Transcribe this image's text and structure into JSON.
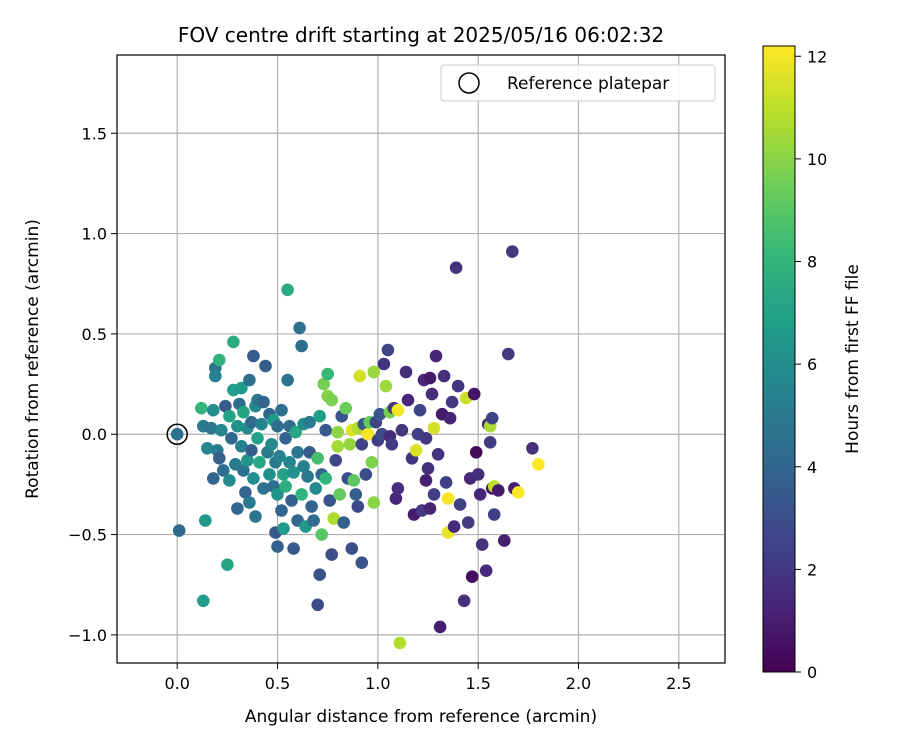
{
  "chart_data": {
    "type": "scatter",
    "title": "FOV centre drift starting at 2025/05/16 06:02:32",
    "xlabel": "Angular distance from reference (arcmin)",
    "ylabel": "Rotation from reference (arcmin)",
    "xlim": [
      -0.3,
      2.73
    ],
    "ylim": [
      -1.14,
      1.89
    ],
    "xticks": [
      0.0,
      0.5,
      1.0,
      1.5,
      2.0,
      2.5
    ],
    "xtick_labels": [
      "0.0",
      "0.5",
      "1.0",
      "1.5",
      "2.0",
      "2.5"
    ],
    "yticks": [
      -1.0,
      -0.5,
      0.0,
      0.5,
      1.0,
      1.5
    ],
    "ytick_labels": [
      "−1.0",
      "−0.5",
      "0.0",
      "0.5",
      "1.0",
      "1.5"
    ],
    "grid": true,
    "legend": {
      "placement": "top-right",
      "entries": [
        "Reference platepar"
      ]
    },
    "reference_point": {
      "x": 0.0,
      "y": 0.0
    },
    "colorbar": {
      "label": "Hours from first FF file",
      "min": 0,
      "max": 12.2,
      "ticks": [
        0,
        2,
        4,
        6,
        8,
        10,
        12
      ],
      "tick_labels": [
        "0",
        "2",
        "4",
        "6",
        "8",
        "10",
        "12"
      ],
      "colormap": "viridis",
      "colormap_stops": [
        "#440154",
        "#482878",
        "#3e4989",
        "#31688e",
        "#26828e",
        "#1f9e89",
        "#35b779",
        "#6ece58",
        "#b5de2b",
        "#fde725"
      ]
    },
    "points": [
      {
        "x": 0.0,
        "y": 0.0,
        "h": 4.5
      },
      {
        "x": 0.01,
        "y": -0.48,
        "h": 4.2
      },
      {
        "x": 0.12,
        "y": 0.13,
        "h": 8.0
      },
      {
        "x": 0.13,
        "y": 0.04,
        "h": 5.0
      },
      {
        "x": 0.14,
        "y": -0.43,
        "h": 6.5
      },
      {
        "x": 0.13,
        "y": -0.83,
        "h": 6.8
      },
      {
        "x": 0.15,
        "y": -0.07,
        "h": 5.5
      },
      {
        "x": 0.17,
        "y": 0.03,
        "h": 4.8
      },
      {
        "x": 0.18,
        "y": 0.12,
        "h": 6.0
      },
      {
        "x": 0.18,
        "y": -0.22,
        "h": 4.0
      },
      {
        "x": 0.19,
        "y": 0.33,
        "h": 4.6
      },
      {
        "x": 0.19,
        "y": 0.29,
        "h": 5.4
      },
      {
        "x": 0.2,
        "y": -0.08,
        "h": 5.2
      },
      {
        "x": 0.21,
        "y": 0.37,
        "h": 7.8
      },
      {
        "x": 0.21,
        "y": -0.12,
        "h": 3.8
      },
      {
        "x": 0.22,
        "y": 0.02,
        "h": 5.6
      },
      {
        "x": 0.23,
        "y": -0.18,
        "h": 4.4
      },
      {
        "x": 0.24,
        "y": 0.14,
        "h": 3.6
      },
      {
        "x": 0.25,
        "y": -0.65,
        "h": 7.2
      },
      {
        "x": 0.26,
        "y": 0.09,
        "h": 7.0
      },
      {
        "x": 0.26,
        "y": -0.23,
        "h": 5.8
      },
      {
        "x": 0.27,
        "y": -0.02,
        "h": 4.1
      },
      {
        "x": 0.28,
        "y": 0.46,
        "h": 7.5
      },
      {
        "x": 0.28,
        "y": 0.22,
        "h": 6.8
      },
      {
        "x": 0.29,
        "y": -0.15,
        "h": 5.1
      },
      {
        "x": 0.3,
        "y": -0.37,
        "h": 4.0
      },
      {
        "x": 0.3,
        "y": 0.04,
        "h": 6.2
      },
      {
        "x": 0.31,
        "y": 0.15,
        "h": 4.3
      },
      {
        "x": 0.32,
        "y": 0.23,
        "h": 6.6
      },
      {
        "x": 0.32,
        "y": -0.06,
        "h": 5.3
      },
      {
        "x": 0.33,
        "y": 0.11,
        "h": 7.1
      },
      {
        "x": 0.33,
        "y": -0.18,
        "h": 4.7
      },
      {
        "x": 0.34,
        "y": -0.29,
        "h": 3.9
      },
      {
        "x": 0.35,
        "y": 0.03,
        "h": 5.9
      },
      {
        "x": 0.35,
        "y": -0.13,
        "h": 6.4
      },
      {
        "x": 0.36,
        "y": 0.27,
        "h": 4.5
      },
      {
        "x": 0.36,
        "y": -0.34,
        "h": 5.0
      },
      {
        "x": 0.37,
        "y": 0.06,
        "h": 4.2
      },
      {
        "x": 0.37,
        "y": -0.08,
        "h": 3.7
      },
      {
        "x": 0.38,
        "y": 0.39,
        "h": 3.5
      },
      {
        "x": 0.38,
        "y": -0.22,
        "h": 6.0
      },
      {
        "x": 0.39,
        "y": 0.14,
        "h": 5.7
      },
      {
        "x": 0.39,
        "y": -0.41,
        "h": 4.8
      },
      {
        "x": 0.4,
        "y": -0.02,
        "h": 6.9
      },
      {
        "x": 0.4,
        "y": 0.17,
        "h": 4.9
      },
      {
        "x": 0.41,
        "y": -0.14,
        "h": 7.3
      },
      {
        "x": 0.42,
        "y": 0.05,
        "h": 5.5
      },
      {
        "x": 0.43,
        "y": 0.16,
        "h": 3.9
      },
      {
        "x": 0.43,
        "y": -0.27,
        "h": 4.6
      },
      {
        "x": 0.44,
        "y": 0.34,
        "h": 3.6
      },
      {
        "x": 0.45,
        "y": -0.09,
        "h": 5.2
      },
      {
        "x": 0.46,
        "y": 0.1,
        "h": 4.0
      },
      {
        "x": 0.46,
        "y": -0.2,
        "h": 6.1
      },
      {
        "x": 0.47,
        "y": -0.05,
        "h": 5.8
      },
      {
        "x": 0.48,
        "y": -0.26,
        "h": 4.4
      },
      {
        "x": 0.48,
        "y": 0.07,
        "h": 6.7
      },
      {
        "x": 0.49,
        "y": -0.49,
        "h": 3.4
      },
      {
        "x": 0.49,
        "y": -0.14,
        "h": 5.1
      },
      {
        "x": 0.5,
        "y": 0.04,
        "h": 4.3
      },
      {
        "x": 0.5,
        "y": -0.3,
        "h": 6.3
      },
      {
        "x": 0.5,
        "y": -0.56,
        "h": 3.8
      },
      {
        "x": 0.51,
        "y": -0.11,
        "h": 5.4
      },
      {
        "x": 0.52,
        "y": 0.12,
        "h": 4.5
      },
      {
        "x": 0.52,
        "y": -0.38,
        "h": 4.0
      },
      {
        "x": 0.53,
        "y": -0.2,
        "h": 7.0
      },
      {
        "x": 0.53,
        "y": -0.47,
        "h": 6.6
      },
      {
        "x": 0.54,
        "y": -0.02,
        "h": 3.9
      },
      {
        "x": 0.54,
        "y": -0.26,
        "h": 7.7
      },
      {
        "x": 0.55,
        "y": 0.72,
        "h": 7.4
      },
      {
        "x": 0.55,
        "y": 0.27,
        "h": 4.7
      },
      {
        "x": 0.56,
        "y": -0.14,
        "h": 5.6
      },
      {
        "x": 0.56,
        "y": 0.04,
        "h": 4.2
      },
      {
        "x": 0.57,
        "y": -0.33,
        "h": 3.7
      },
      {
        "x": 0.58,
        "y": -0.57,
        "h": 3.4
      },
      {
        "x": 0.58,
        "y": -0.19,
        "h": 6.2
      },
      {
        "x": 0.59,
        "y": 0.01,
        "h": 7.2
      },
      {
        "x": 0.6,
        "y": -0.09,
        "h": 4.8
      },
      {
        "x": 0.6,
        "y": -0.43,
        "h": 4.1
      },
      {
        "x": 0.61,
        "y": 0.53,
        "h": 4.6
      },
      {
        "x": 0.62,
        "y": 0.44,
        "h": 4.4
      },
      {
        "x": 0.62,
        "y": -0.3,
        "h": 7.9
      },
      {
        "x": 0.63,
        "y": -0.16,
        "h": 5.3
      },
      {
        "x": 0.63,
        "y": 0.05,
        "h": 6.0
      },
      {
        "x": 0.64,
        "y": -0.46,
        "h": 6.5
      },
      {
        "x": 0.65,
        "y": -0.21,
        "h": 4.9
      },
      {
        "x": 0.66,
        "y": -0.09,
        "h": 3.6
      },
      {
        "x": 0.66,
        "y": 0.06,
        "h": 5.0
      },
      {
        "x": 0.67,
        "y": -0.36,
        "h": 3.9
      },
      {
        "x": 0.68,
        "y": -0.43,
        "h": 4.3
      },
      {
        "x": 0.69,
        "y": -0.27,
        "h": 5.8
      },
      {
        "x": 0.7,
        "y": -0.12,
        "h": 8.6
      },
      {
        "x": 0.7,
        "y": -0.85,
        "h": 2.8
      },
      {
        "x": 0.71,
        "y": 0.09,
        "h": 6.9
      },
      {
        "x": 0.71,
        "y": -0.7,
        "h": 3.1
      },
      {
        "x": 0.72,
        "y": -0.5,
        "h": 9.0
      },
      {
        "x": 0.72,
        "y": -0.2,
        "h": 4.0
      },
      {
        "x": 0.73,
        "y": 0.25,
        "h": 9.6
      },
      {
        "x": 0.74,
        "y": -0.22,
        "h": 8.0
      },
      {
        "x": 0.74,
        "y": 0.02,
        "h": 3.5
      },
      {
        "x": 0.75,
        "y": 0.3,
        "h": 8.2
      },
      {
        "x": 0.75,
        "y": 0.19,
        "h": 9.9
      },
      {
        "x": 0.76,
        "y": -0.33,
        "h": 3.3
      },
      {
        "x": 0.77,
        "y": -0.6,
        "h": 3.0
      },
      {
        "x": 0.77,
        "y": 0.17,
        "h": 9.7
      },
      {
        "x": 0.78,
        "y": -0.42,
        "h": 10.7
      },
      {
        "x": 0.79,
        "y": -0.13,
        "h": 2.6
      },
      {
        "x": 0.8,
        "y": -0.06,
        "h": 10.5
      },
      {
        "x": 0.8,
        "y": 0.01,
        "h": 10.1
      },
      {
        "x": 0.81,
        "y": -0.3,
        "h": 9.2
      },
      {
        "x": 0.82,
        "y": 0.09,
        "h": 3.2
      },
      {
        "x": 0.83,
        "y": -0.44,
        "h": 3.8
      },
      {
        "x": 0.84,
        "y": 0.13,
        "h": 9.4
      },
      {
        "x": 0.85,
        "y": -0.22,
        "h": 3.0
      },
      {
        "x": 0.86,
        "y": -0.05,
        "h": 10.2
      },
      {
        "x": 0.87,
        "y": -0.57,
        "h": 2.9
      },
      {
        "x": 0.87,
        "y": 0.02,
        "h": 11.6
      },
      {
        "x": 0.88,
        "y": -0.23,
        "h": 9.1
      },
      {
        "x": 0.89,
        "y": -0.3,
        "h": 3.6
      },
      {
        "x": 0.9,
        "y": 0.03,
        "h": 10.8
      },
      {
        "x": 0.9,
        "y": -0.36,
        "h": 2.7
      },
      {
        "x": 0.91,
        "y": 0.29,
        "h": 11.3
      },
      {
        "x": 0.92,
        "y": -0.64,
        "h": 3.2
      },
      {
        "x": 0.92,
        "y": -0.05,
        "h": 2.5
      },
      {
        "x": 0.93,
        "y": 0.05,
        "h": 3.4
      },
      {
        "x": 0.94,
        "y": -0.2,
        "h": 2.8
      },
      {
        "x": 0.95,
        "y": 0.0,
        "h": 12.0
      },
      {
        "x": 0.96,
        "y": 0.06,
        "h": 9.3
      },
      {
        "x": 0.97,
        "y": -0.14,
        "h": 9.8
      },
      {
        "x": 0.98,
        "y": -0.34,
        "h": 10.0
      },
      {
        "x": 0.98,
        "y": 0.31,
        "h": 10.3
      },
      {
        "x": 0.99,
        "y": 0.06,
        "h": 2.6
      },
      {
        "x": 1.0,
        "y": -0.03,
        "h": 2.3
      },
      {
        "x": 1.01,
        "y": 0.1,
        "h": 3.3
      },
      {
        "x": 1.02,
        "y": 0.0,
        "h": 2.9
      },
      {
        "x": 1.03,
        "y": 0.35,
        "h": 1.9
      },
      {
        "x": 1.04,
        "y": 0.24,
        "h": 10.4
      },
      {
        "x": 1.05,
        "y": 0.42,
        "h": 2.5
      },
      {
        "x": 1.06,
        "y": -0.01,
        "h": 1.5
      },
      {
        "x": 1.06,
        "y": 0.11,
        "h": 9.6
      },
      {
        "x": 1.07,
        "y": -0.05,
        "h": 2.2
      },
      {
        "x": 1.08,
        "y": 0.13,
        "h": 2.0
      },
      {
        "x": 1.09,
        "y": -0.32,
        "h": 1.3
      },
      {
        "x": 1.1,
        "y": -0.27,
        "h": 1.6
      },
      {
        "x": 1.1,
        "y": 0.12,
        "h": 12.0
      },
      {
        "x": 1.11,
        "y": -1.04,
        "h": 10.8
      },
      {
        "x": 1.12,
        "y": 0.02,
        "h": 1.9
      },
      {
        "x": 1.14,
        "y": 0.31,
        "h": 1.6
      },
      {
        "x": 1.15,
        "y": 0.17,
        "h": 1.4
      },
      {
        "x": 1.17,
        "y": -0.12,
        "h": 1.9
      },
      {
        "x": 1.18,
        "y": -0.4,
        "h": 0.9
      },
      {
        "x": 1.19,
        "y": -0.08,
        "h": 11.5
      },
      {
        "x": 1.2,
        "y": 0.0,
        "h": 2.4
      },
      {
        "x": 1.21,
        "y": 0.12,
        "h": 2.6
      },
      {
        "x": 1.22,
        "y": -0.38,
        "h": 2.1
      },
      {
        "x": 1.23,
        "y": 0.27,
        "h": 1.4
      },
      {
        "x": 1.24,
        "y": -0.02,
        "h": 2.0
      },
      {
        "x": 1.24,
        "y": -0.23,
        "h": 1.1
      },
      {
        "x": 1.25,
        "y": -0.17,
        "h": 1.7
      },
      {
        "x": 1.26,
        "y": 0.28,
        "h": 0.8
      },
      {
        "x": 1.26,
        "y": -0.37,
        "h": 1.2
      },
      {
        "x": 1.27,
        "y": 0.2,
        "h": 1.5
      },
      {
        "x": 1.28,
        "y": -0.3,
        "h": 2.2
      },
      {
        "x": 1.28,
        "y": 0.03,
        "h": 11.4
      },
      {
        "x": 1.29,
        "y": 0.39,
        "h": 1.3
      },
      {
        "x": 1.3,
        "y": -0.1,
        "h": 1.8
      },
      {
        "x": 1.31,
        "y": -0.96,
        "h": 1.0
      },
      {
        "x": 1.32,
        "y": 0.1,
        "h": 0.9
      },
      {
        "x": 1.33,
        "y": 0.29,
        "h": 1.6
      },
      {
        "x": 1.34,
        "y": -0.24,
        "h": 2.3
      },
      {
        "x": 1.35,
        "y": -0.32,
        "h": 12.1
      },
      {
        "x": 1.35,
        "y": -0.49,
        "h": 11.8
      },
      {
        "x": 1.36,
        "y": 0.08,
        "h": 1.2
      },
      {
        "x": 1.37,
        "y": 0.16,
        "h": 2.0
      },
      {
        "x": 1.38,
        "y": -0.46,
        "h": 1.5
      },
      {
        "x": 1.39,
        "y": 0.83,
        "h": 1.8
      },
      {
        "x": 1.4,
        "y": 0.24,
        "h": 1.9
      },
      {
        "x": 1.41,
        "y": -0.35,
        "h": 2.4
      },
      {
        "x": 1.43,
        "y": -0.83,
        "h": 1.7
      },
      {
        "x": 1.44,
        "y": 0.18,
        "h": 11.2
      },
      {
        "x": 1.45,
        "y": -0.44,
        "h": 2.1
      },
      {
        "x": 1.46,
        "y": -0.22,
        "h": 1.4
      },
      {
        "x": 1.47,
        "y": -0.71,
        "h": 0.5
      },
      {
        "x": 1.48,
        "y": 0.2,
        "h": 0.7
      },
      {
        "x": 1.49,
        "y": -0.09,
        "h": 0.3
      },
      {
        "x": 1.5,
        "y": -0.2,
        "h": 1.6
      },
      {
        "x": 1.51,
        "y": -0.3,
        "h": 1.3
      },
      {
        "x": 1.52,
        "y": -0.55,
        "h": 1.8
      },
      {
        "x": 1.54,
        "y": -0.68,
        "h": 1.5
      },
      {
        "x": 1.55,
        "y": 0.05,
        "h": 1.2
      },
      {
        "x": 1.56,
        "y": -0.04,
        "h": 2.2
      },
      {
        "x": 1.56,
        "y": 0.04,
        "h": 10.6
      },
      {
        "x": 1.57,
        "y": -0.27,
        "h": 0.8
      },
      {
        "x": 1.57,
        "y": 0.08,
        "h": 2.5
      },
      {
        "x": 1.58,
        "y": -0.4,
        "h": 2.3
      },
      {
        "x": 1.58,
        "y": -0.26,
        "h": 11.0
      },
      {
        "x": 1.6,
        "y": -0.28,
        "h": 0.9
      },
      {
        "x": 1.63,
        "y": -0.53,
        "h": 1.1
      },
      {
        "x": 1.65,
        "y": 0.4,
        "h": 2.1
      },
      {
        "x": 1.67,
        "y": 0.91,
        "h": 2.0
      },
      {
        "x": 1.68,
        "y": -0.27,
        "h": 1.0
      },
      {
        "x": 1.7,
        "y": -0.29,
        "h": 12.1
      },
      {
        "x": 1.77,
        "y": -0.07,
        "h": 1.7
      },
      {
        "x": 1.8,
        "y": -0.15,
        "h": 12.2
      }
    ]
  }
}
